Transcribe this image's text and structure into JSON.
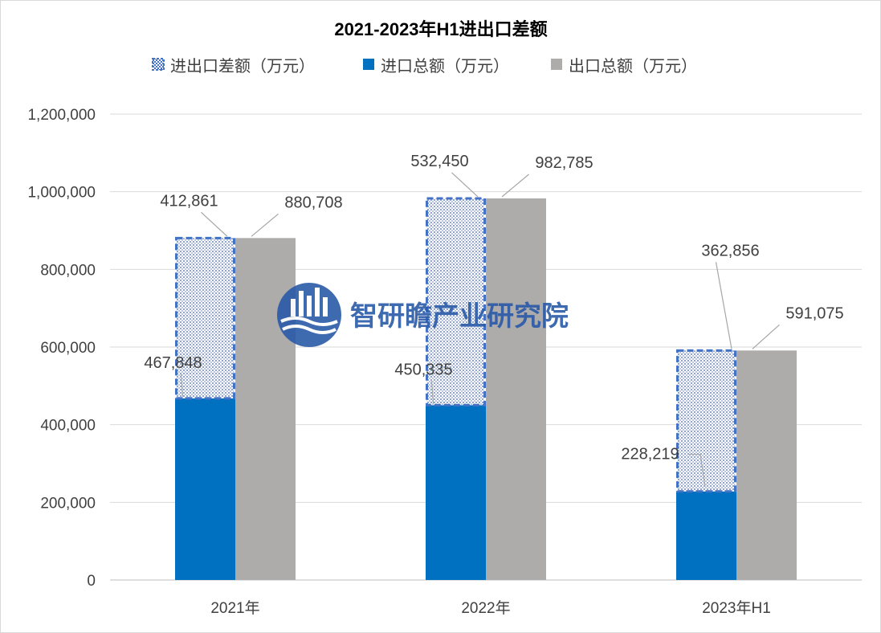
{
  "chart_data": {
    "type": "bar",
    "title": "2021-2023年H1进出口差额",
    "categories": [
      "2021年",
      "2022年",
      "2023年H1"
    ],
    "series": [
      {
        "name": "进出口差额（万元）",
        "values": [
          412861,
          532450,
          362856
        ],
        "color": "#4472c4",
        "style": "dashed-outline-pattern",
        "stacked_on": "进口总额（万元）"
      },
      {
        "name": "进口总额（万元）",
        "values": [
          467848,
          450335,
          228219
        ],
        "color": "#0070c0"
      },
      {
        "name": "出口总额（万元）",
        "values": [
          880708,
          982785,
          591075
        ],
        "color": "#aeabab"
      }
    ],
    "y_ticks": [
      "0",
      "200,000",
      "400,000",
      "600,000",
      "800,000",
      "1,000,000",
      "1,200,000"
    ],
    "ylim": [
      0,
      1200000
    ],
    "grid": true,
    "legend_position": "top",
    "data_labels": {
      "diff": [
        "412,861",
        "532,450",
        "362,856"
      ],
      "import": [
        "467,848",
        "450,335",
        "228,219"
      ],
      "export": [
        "880,708",
        "982,785",
        "591,075"
      ]
    }
  },
  "watermark": {
    "text": "智研瞻产业研究院",
    "icon": "city-wave-logo-icon",
    "color": "#2a5aa8"
  }
}
